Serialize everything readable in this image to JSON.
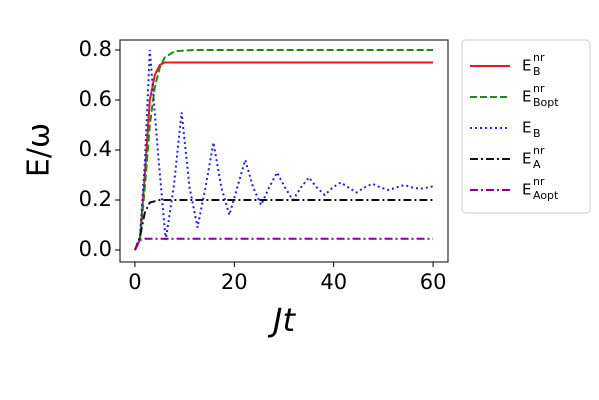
{
  "chart_data": {
    "type": "line",
    "xlabel": "Jt",
    "ylabel": "E/ω",
    "xlim": [
      -3,
      63
    ],
    "ylim": [
      -0.048,
      0.84
    ],
    "xticks": [
      0,
      20,
      40,
      60
    ],
    "yticks": [
      {
        "value": 0,
        "label": "0.0"
      },
      0.2,
      0.4,
      0.6,
      0.8
    ],
    "legend": "outside-right",
    "series": [
      {
        "name": "E",
        "sub": "B",
        "sup": "nr",
        "color": "#e41a1c",
        "style": "solid",
        "x": [
          0,
          1,
          2,
          3,
          4,
          5,
          6,
          8,
          60
        ],
        "values": [
          0,
          0.04,
          0.3,
          0.6,
          0.7,
          0.74,
          0.75,
          0.75,
          0.75
        ]
      },
      {
        "name": "E",
        "sub": "Bopt",
        "sup": "nr",
        "color": "#1a8a1a",
        "style": "dashed",
        "x": [
          0,
          1,
          2,
          3,
          4,
          5,
          6,
          8,
          12,
          60
        ],
        "values": [
          0,
          0.04,
          0.25,
          0.5,
          0.65,
          0.73,
          0.77,
          0.795,
          0.8,
          0.8
        ]
      },
      {
        "name": "E",
        "sub": "B",
        "color": "#1f1fe0",
        "style": "dotted",
        "x": [
          0,
          1,
          2,
          3,
          4.6,
          6.2,
          7.8,
          9.4,
          11,
          12.6,
          14.2,
          15.8,
          17.4,
          19,
          20.6,
          22.2,
          23.8,
          25.4,
          27,
          28.6,
          30.2,
          31.8,
          33.4,
          35,
          36.6,
          38.2,
          39.8,
          41.4,
          43,
          44.6,
          46.2,
          47.8,
          49.4,
          51,
          52.6,
          54.2,
          55.8,
          57.4,
          59,
          60
        ],
        "values": [
          0,
          0.05,
          0.35,
          0.8,
          0.4,
          0.04,
          0.25,
          0.55,
          0.25,
          0.09,
          0.25,
          0.43,
          0.25,
          0.14,
          0.25,
          0.36,
          0.25,
          0.18,
          0.25,
          0.31,
          0.25,
          0.2,
          0.25,
          0.29,
          0.25,
          0.22,
          0.25,
          0.27,
          0.25,
          0.23,
          0.25,
          0.265,
          0.25,
          0.24,
          0.25,
          0.26,
          0.25,
          0.245,
          0.25,
          0.255
        ]
      },
      {
        "name": "E",
        "sub": "A",
        "sup": "nr",
        "color": "#111111",
        "style": "dashdot",
        "x": [
          0,
          1,
          2,
          3,
          5,
          60
        ],
        "values": [
          0,
          0.05,
          0.15,
          0.19,
          0.2,
          0.2
        ]
      },
      {
        "name": "E",
        "sub": "Aopt",
        "sup": "nr",
        "color": "#8b008b",
        "style": "dashdot",
        "x": [
          0,
          1,
          2,
          60
        ],
        "values": [
          0,
          0.04,
          0.045,
          0.045
        ]
      }
    ]
  }
}
